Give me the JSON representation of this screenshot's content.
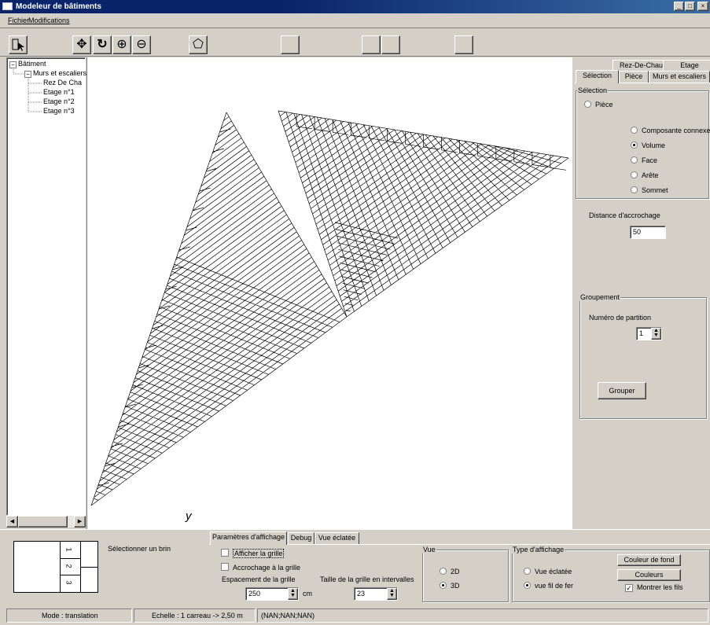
{
  "window": {
    "title": "Modeleur de bâtiments",
    "minimize": "_",
    "maximize": "□",
    "close": "×"
  },
  "menu": {
    "file": "Fichier",
    "modifications": "Modifications"
  },
  "toolbar": {
    "icons": [
      "select-icon",
      "move-icon",
      "rotate-icon",
      "zoom-in-icon",
      "zoom-out-icon",
      "polygon-icon"
    ],
    "glyphs": {
      "move": "✥",
      "rotate": "↻",
      "zoom_in": "⊕",
      "zoom_out": "⊖",
      "polygon": "⬠"
    }
  },
  "tree": {
    "root": "Bâtiment",
    "child": "Murs et escaliers",
    "leaves": [
      "Rez De Cha",
      "Etage n°1",
      "Etage n°2",
      "Etage n°3"
    ],
    "expanded_glyph": "−"
  },
  "canvas": {
    "axis_label": "y"
  },
  "right_panel": {
    "tabs_row1": [
      "Rez-De-Chaussée",
      "Etage"
    ],
    "tabs_row2": [
      "Sélection",
      "Pièce",
      "Murs et escaliers"
    ],
    "active_tab": "Sélection",
    "selection_group": "Sélection",
    "piece_option": "Pièce",
    "options": [
      "Composante connexe",
      "Volume",
      "Face",
      "Arête",
      "Sommet"
    ],
    "selected_option": "Volume",
    "snap_label": "Distance d'accrochage",
    "snap_value": "50",
    "group_title": "Groupement",
    "partition_label": "Numéro de partition",
    "partition_value": "1",
    "group_button": "Grouper"
  },
  "bottom": {
    "select_strand": "Sélectionner un brin",
    "strand_labels": [
      "1",
      "2",
      "3"
    ],
    "tabs": [
      "Paramètres d'affichage",
      "Debug",
      "Vue éclatée"
    ],
    "active_tab": "Paramètres d'affichage",
    "show_grid": "Afficher la grille",
    "snap_grid": "Accrochage à la grille",
    "grid_spacing_label": "Espacement de la grille",
    "grid_spacing_value": "250",
    "grid_spacing_unit": "cm",
    "grid_size_label": "Taille de la grille en intervalles",
    "grid_size_value": "23",
    "view_group": "Vue",
    "view_options": [
      "2D",
      "3D"
    ],
    "view_selected": "3D",
    "display_group": "Type d'affichage",
    "display_options": [
      "Vue éclatée",
      "vue fil de fer"
    ],
    "display_selected": "vue fil de fer",
    "bg_color_button": "Couleur de fond",
    "colors_button": "Couleurs",
    "show_wires": "Montrer les fils",
    "show_wires_checked": true
  },
  "status": {
    "mode": "Mode : translation",
    "scale": "Echelle : 1 carreau -> 2,50 m",
    "coords": "(NAN;NAN;NAN)"
  }
}
